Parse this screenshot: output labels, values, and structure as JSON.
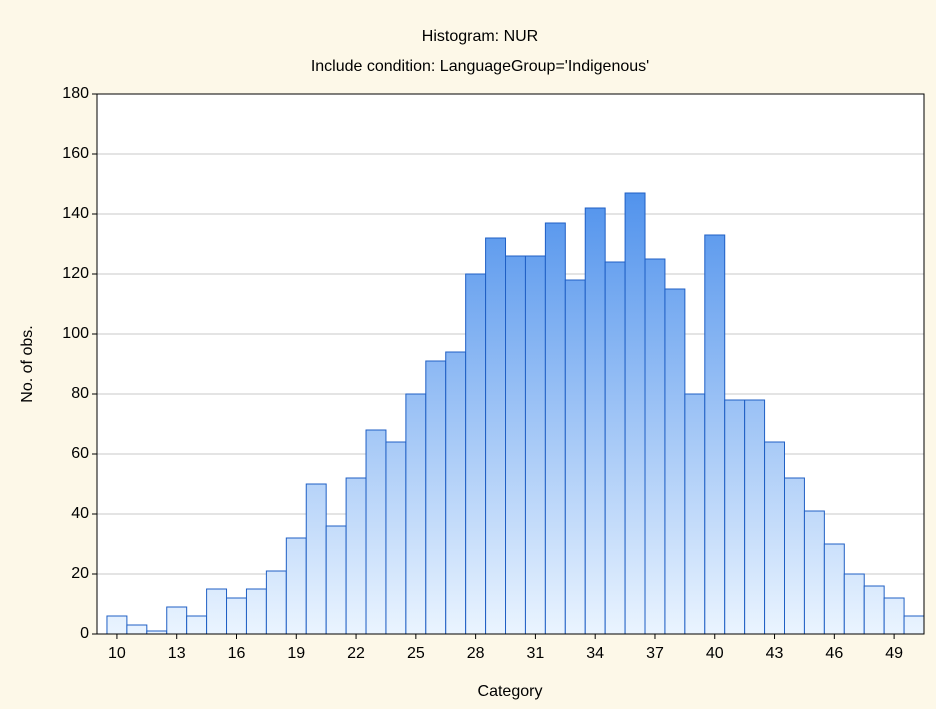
{
  "chart_data": {
    "type": "histogram",
    "title": "Histogram: NUR",
    "subtitle": "Include condition: LanguageGroup='Indigenous'",
    "x_label": "Category",
    "y_label": "No. of obs.",
    "bins": [
      9.5,
      10.5,
      11.5,
      12.5,
      13.5,
      14.5,
      15.5,
      16.5,
      17.5,
      18.5,
      19.5,
      20.5,
      21.5,
      22.5,
      23.5,
      24.5,
      25.5,
      26.5,
      27.5,
      28.5,
      29.5,
      30.5,
      31.5,
      32.5,
      33.5,
      34.5,
      35.5,
      36.5,
      37.5,
      38.5,
      39.5,
      40.5,
      41.5,
      42.5,
      43.5,
      44.5,
      45.5,
      46.5,
      47.5,
      48.5,
      49.5,
      50.5
    ],
    "values": [
      6,
      3,
      1,
      9,
      6,
      15,
      12,
      15,
      21,
      32,
      50,
      36,
      52,
      68,
      64,
      80,
      91,
      94,
      120,
      132,
      126,
      126,
      137,
      118,
      142,
      124,
      147,
      125,
      115,
      80,
      133,
      78,
      78,
      64,
      52,
      41,
      30,
      20,
      16,
      12,
      6
    ],
    "color": "#2f7de8",
    "xlim": [
      9,
      50.5
    ],
    "xticks": [
      10,
      13,
      16,
      19,
      22,
      25,
      28,
      31,
      34,
      37,
      40,
      43,
      46,
      49
    ],
    "ylim": [
      0,
      180
    ],
    "yticks": [
      0,
      20,
      40,
      60,
      80,
      100,
      120,
      140,
      160,
      180
    ],
    "grid": true
  }
}
